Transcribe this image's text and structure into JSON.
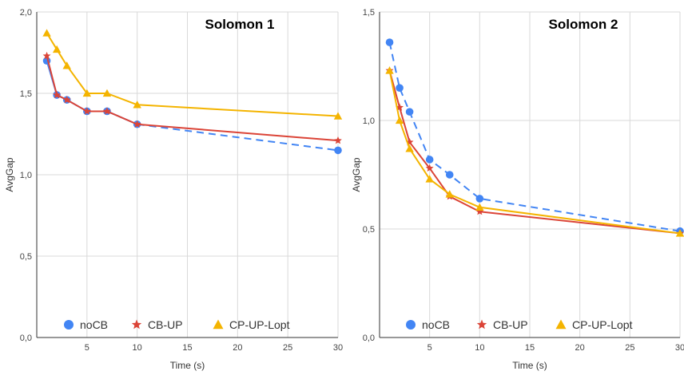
{
  "chart_data": [
    {
      "type": "line",
      "title": "Solomon 1",
      "xlabel": "Time (s)",
      "ylabel": "AvgGap",
      "xlim": [
        0,
        30
      ],
      "ylim": [
        0,
        2
      ],
      "xticks": [
        5,
        10,
        15,
        20,
        25,
        30
      ],
      "xtick_labels": [
        "5",
        "10",
        "15",
        "20",
        "25",
        "30"
      ],
      "yticks": [
        0,
        0.5,
        1,
        1.5,
        2
      ],
      "ytick_labels": [
        "0,0",
        "0,5",
        "1,0",
        "1,5",
        "2,0"
      ],
      "grid": true,
      "legend_position": "bottom",
      "series": [
        {
          "name": "noCB",
          "color": "#4285f4",
          "marker": "circle",
          "x": [
            1,
            2,
            3,
            5,
            7,
            10,
            30
          ],
          "y": [
            1.7,
            1.49,
            1.46,
            1.39,
            1.39,
            1.31,
            1.15
          ],
          "dashed_after_index": 5
        },
        {
          "name": "CB-UP",
          "color": "#db4437",
          "marker": "star",
          "x": [
            1,
            2,
            3,
            5,
            7,
            10,
            30
          ],
          "y": [
            1.73,
            1.49,
            1.46,
            1.39,
            1.39,
            1.31,
            1.21
          ]
        },
        {
          "name": "CP-UP-Lopt",
          "color": "#f4b400",
          "marker": "triangle",
          "x": [
            1,
            2,
            3,
            5,
            7,
            10,
            30
          ],
          "y": [
            1.87,
            1.77,
            1.67,
            1.5,
            1.5,
            1.43,
            1.36
          ]
        }
      ]
    },
    {
      "type": "line",
      "title": "Solomon 2",
      "xlabel": "Time (s)",
      "ylabel": "AvgGap",
      "xlim": [
        0,
        30
      ],
      "ylim": [
        0,
        1.5
      ],
      "xticks": [
        5,
        10,
        15,
        20,
        25,
        30
      ],
      "xtick_labels": [
        "5",
        "10",
        "15",
        "20",
        "25",
        "30"
      ],
      "yticks": [
        0,
        0.5,
        1,
        1.5
      ],
      "ytick_labels": [
        "0,0",
        "0,5",
        "1,0",
        "1,5"
      ],
      "grid": true,
      "legend_position": "bottom",
      "series": [
        {
          "name": "noCB",
          "color": "#4285f4",
          "marker": "circle",
          "x": [
            1,
            2,
            3,
            5,
            7,
            10,
            30
          ],
          "y": [
            1.36,
            1.15,
            1.04,
            0.82,
            0.75,
            0.64,
            0.49
          ],
          "dashed_after_index": 0
        },
        {
          "name": "CB-UP",
          "color": "#db4437",
          "marker": "star",
          "x": [
            1,
            2,
            3,
            5,
            7,
            10,
            30
          ],
          "y": [
            1.23,
            1.06,
            0.9,
            0.78,
            0.65,
            0.58,
            0.48
          ]
        },
        {
          "name": "CP-UP-Lopt",
          "color": "#f4b400",
          "marker": "triangle",
          "x": [
            1,
            2,
            3,
            5,
            7,
            10,
            30
          ],
          "y": [
            1.23,
            1.0,
            0.87,
            0.73,
            0.66,
            0.6,
            0.48
          ]
        }
      ]
    }
  ]
}
